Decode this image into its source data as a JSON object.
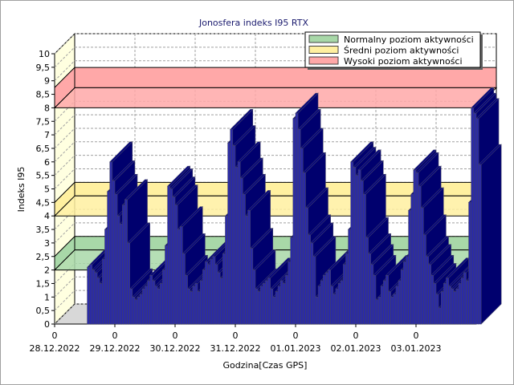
{
  "chart_data": {
    "type": "bar",
    "title": "Jonosfera indeks I95 RTX",
    "xlabel": "Godzina[Czas GPS]",
    "ylabel": "Indeks I95",
    "ylim": [
      0,
      10
    ],
    "y_ticks": [
      "0",
      "0,5",
      "1",
      "1,5",
      "2",
      "2,5",
      "3",
      "3,5",
      "4",
      "4,5",
      "5",
      "5,5",
      "6",
      "6,5",
      "7",
      "7,5",
      "8",
      "8,5",
      "9",
      "9,5",
      "10"
    ],
    "x_ticks": [
      {
        "hour": "0",
        "date": "28.12.2022"
      },
      {
        "hour": "0",
        "date": "29.12.2022"
      },
      {
        "hour": "0",
        "date": "30.12.2022"
      },
      {
        "hour": "0",
        "date": "31.12.2022"
      },
      {
        "hour": "0",
        "date": "01.01.2023"
      },
      {
        "hour": "0",
        "date": "02.01.2023"
      },
      {
        "hour": "0",
        "date": "03.01.2023"
      }
    ],
    "grid": true,
    "three_d": true,
    "bar_color": "#2a2aa8",
    "bar_top_color": "#000080",
    "x_start": "28.12.2022 13:00",
    "x_step": "1 h",
    "values": [
      2.1,
      2.2,
      2.0,
      1.9,
      1.7,
      1.5,
      2.4,
      3.5,
      4.9,
      6.0,
      5.3,
      4.8,
      4.0,
      3.7,
      4.4,
      4.6,
      3.0,
      1.3,
      1.0,
      0.9,
      1.0,
      1.1,
      1.3,
      1.4,
      1.6,
      1.8,
      1.6,
      1.4,
      1.3,
      1.5,
      2.0,
      2.9,
      5.1,
      5.0,
      4.7,
      4.4,
      3.5,
      3.6,
      2.6,
      1.8,
      1.3,
      1.2,
      1.4,
      1.5,
      1.2,
      1.6,
      2.0,
      2.3,
      2.2,
      2.4,
      2.5,
      2.2,
      1.9,
      1.7,
      2.6,
      4.0,
      6.7,
      7.2,
      6.6,
      5.8,
      6.0,
      5.4,
      4.8,
      4.0,
      4.2,
      2.8,
      2.0,
      1.3,
      1.2,
      1.4,
      1.5,
      1.6,
      1.7,
      1.3,
      1.0,
      1.2,
      1.4,
      1.6,
      1.5,
      1.8,
      2.3,
      3.2,
      7.6,
      7.8,
      7.2,
      6.5,
      5.6,
      4.3,
      3.3,
      3.0,
      2.5,
      1.0,
      1.4,
      1.6,
      1.8,
      1.9,
      2.0,
      1.4,
      1.1,
      1.3,
      1.5,
      1.6,
      2.2,
      2.6,
      3.5,
      6.0,
      5.8,
      5.5,
      5.7,
      5.3,
      4.8,
      3.2,
      2.6,
      2.2,
      1.8,
      0.9,
      1.0,
      1.4,
      1.6,
      1.8,
      1.2,
      1.0,
      1.1,
      1.4,
      1.6,
      2.0,
      2.3,
      2.5,
      4.2,
      4.8,
      5.7,
      5.6,
      5.1,
      4.3,
      3.3,
      2.5,
      2.2,
      1.8,
      1.5,
      1.1,
      0.6,
      1.2,
      1.5,
      1.7,
      1.4,
      1.3,
      1.2,
      1.3,
      1.5,
      1.7,
      1.9,
      1.6,
      4.5,
      8.0,
      7.8,
      7.6,
      5.9
    ],
    "bands": [
      {
        "name": "Normalny poziom aktywności",
        "from": 2.0,
        "to": 2.5,
        "color": "#a8d8a8"
      },
      {
        "name": "Średni poziom aktywności",
        "from": 4.0,
        "to": 4.5,
        "color": "#fff0a0"
      },
      {
        "name": "Wysoki poziom aktywności",
        "from": 8.0,
        "to": 8.75,
        "color": "#ffa8a8"
      }
    ],
    "legend_position": "top-right"
  }
}
